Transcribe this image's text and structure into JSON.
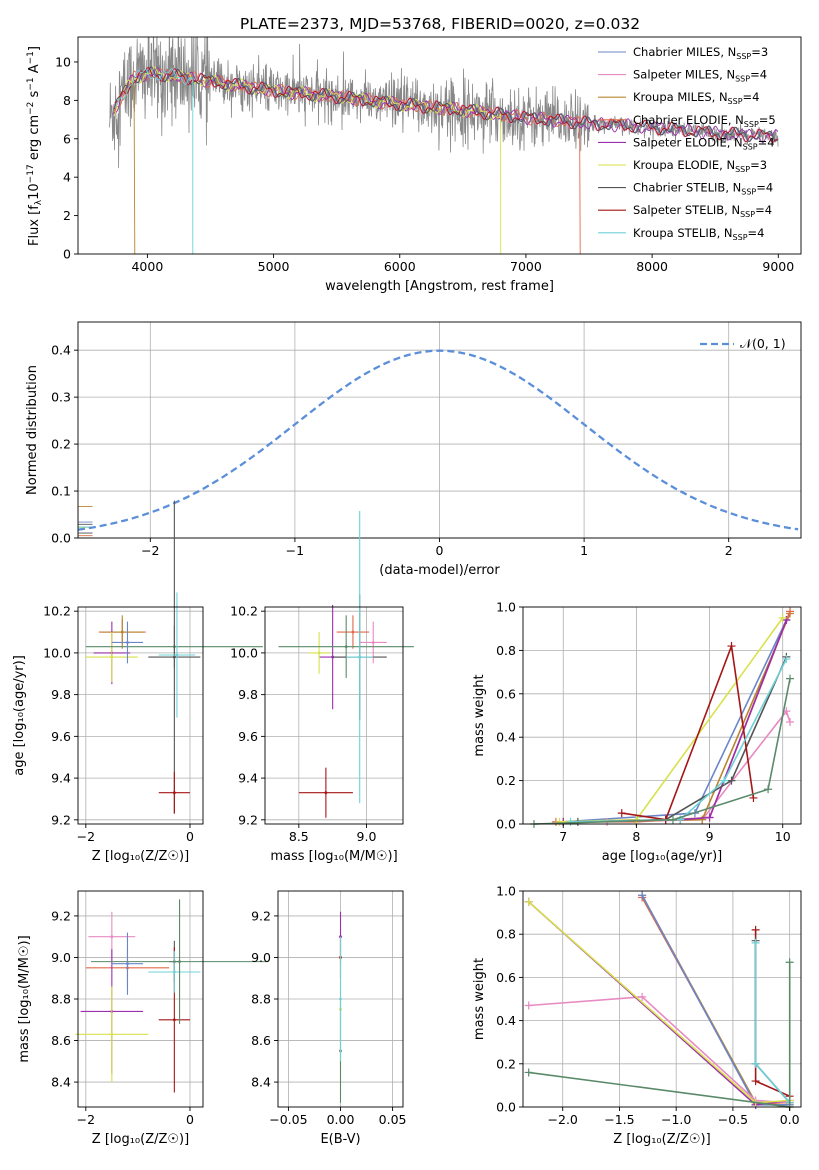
{
  "figure": {
    "title": "PLATE=2373, MJD=53768, FIBERID=0020, z=0.032"
  },
  "legend_entries": [
    {
      "label": "Chabrier MILES, N",
      "sub": "SSP",
      "suffix": "=3",
      "color": "#6b86c8"
    },
    {
      "label": "Salpeter MILES, N",
      "sub": "SSP",
      "suffix": "=4",
      "color": "#e88ac2"
    },
    {
      "label": "Kroupa MILES, N",
      "sub": "SSP",
      "suffix": "=4",
      "color": "#b8862e"
    },
    {
      "label": "Chabrier ELODIE, N",
      "sub": "SSP",
      "suffix": "=5",
      "color": "#e06a4a"
    },
    {
      "label": "Salpeter ELODIE, N",
      "sub": "SSP",
      "suffix": "=4",
      "color": "#9b2fae"
    },
    {
      "label": "Kroupa ELODIE, N",
      "sub": "SSP",
      "suffix": "=3",
      "color": "#d8e14a"
    },
    {
      "label": "Chabrier STELIB, N",
      "sub": "SSP",
      "suffix": "=4",
      "color": "#555555"
    },
    {
      "label": "Salpeter STELIB, N",
      "sub": "SSP",
      "suffix": "=4",
      "color": "#a41717"
    },
    {
      "label": "Kroupa STELIB, N",
      "sub": "SSP",
      "suffix": "=4",
      "color": "#6fd1d8"
    }
  ],
  "chart_data": [
    {
      "id": "spectrum",
      "type": "line",
      "xlabel": "wavelength [Angstrom, rest frame]",
      "ylabel_parts": [
        "Flux [f",
        "λ",
        "10",
        "−17",
        " erg cm",
        "−2",
        " s",
        "−1",
        " A",
        "−1",
        "]"
      ],
      "xlim": [
        3450,
        9180
      ],
      "ylim": [
        0,
        11.3
      ],
      "xticks": [
        4000,
        5000,
        6000,
        7000,
        8000,
        9000
      ],
      "yticks": [
        0,
        2,
        4,
        6,
        8,
        10
      ],
      "data_trend": [
        [
          3700,
          7.0
        ],
        [
          3800,
          8.3
        ],
        [
          3900,
          9.2
        ],
        [
          4000,
          9.4
        ],
        [
          4200,
          9.3
        ],
        [
          4500,
          9.0
        ],
        [
          5000,
          8.5
        ],
        [
          5500,
          8.2
        ],
        [
          6000,
          7.8
        ],
        [
          6500,
          7.5
        ],
        [
          7000,
          7.1
        ],
        [
          7500,
          6.8
        ],
        [
          8000,
          6.6
        ],
        [
          8500,
          6.3
        ],
        [
          9000,
          6.1
        ]
      ],
      "model_dropouts": [
        {
          "series": "Kroupa MILES, N",
          "x": 3900
        },
        {
          "series": "Kroupa STELIB, N",
          "x": 4360
        },
        {
          "series": "Kroupa ELODIE, N",
          "x": 6800
        },
        {
          "series": "Chabrier ELODIE, N",
          "x": 7430
        }
      ]
    },
    {
      "id": "residual-hist",
      "type": "bar",
      "xlabel": "(data-model)/error",
      "ylabel": "Normed distribution",
      "xlim": [
        -2.5,
        2.5
      ],
      "ylim": [
        0,
        0.46
      ],
      "xticks": [
        -2,
        -1,
        0,
        1,
        2
      ],
      "xtick_labels": [
        "−2",
        "−1",
        "0",
        "1",
        "2"
      ],
      "yticks": [
        0.0,
        0.1,
        0.2,
        0.3,
        0.4
      ],
      "ytick_labels": [
        "0.0",
        "0.1",
        "0.2",
        "0.3",
        "0.4"
      ],
      "bin_width": 0.1,
      "gaussian": {
        "mu": 0,
        "sigma": 1,
        "label": "𝒩(0, 1)"
      }
    },
    {
      "id": "age-vs-Z",
      "type": "scatter",
      "xlabel": "Z [log₁₀(Z/Z☉)]",
      "ylabel": "age  [log₁₀(age/yr)]",
      "xlim": [
        -2.15,
        0.25
      ],
      "ylim": [
        9.18,
        10.22
      ],
      "xticks": [
        -2,
        0
      ],
      "xtick_labels": [
        "−2",
        "0"
      ],
      "yticks": [
        9.2,
        9.4,
        9.6,
        9.8,
        10.0,
        10.2
      ],
      "ytick_labels": [
        "9.2",
        "9.4",
        "9.6",
        "9.8",
        "10.0",
        "10.2"
      ],
      "points": [
        {
          "x": -1.3,
          "y": 10.1,
          "xerr": 0.45,
          "yerr": 0.06,
          "color": "#e06a4a"
        },
        {
          "x": -1.3,
          "y": 10.1,
          "xerr": 0.4,
          "yerr": 0.08,
          "color": "#b8862e"
        },
        {
          "x": -1.5,
          "y": 10.0,
          "xerr": 0.35,
          "yerr": 0.15,
          "color": "#9b2fae"
        },
        {
          "x": -1.5,
          "y": 9.98,
          "xerr": 0.5,
          "yerr": 0.12,
          "color": "#d8e14a"
        },
        {
          "x": -0.3,
          "y": 10.03,
          "xerr": 1.7,
          "yerr": 0.1,
          "color": "#5a8a6a"
        },
        {
          "x": -0.3,
          "y": 9.98,
          "xerr": 0.5,
          "yerr": 0.75,
          "color": "#555555"
        },
        {
          "x": -0.3,
          "y": 9.33,
          "xerr": 0.3,
          "yerr": 0.1,
          "color": "#a41717"
        },
        {
          "x": -0.25,
          "y": 9.99,
          "xerr": 0.35,
          "yerr": 0.3,
          "color": "#6fd1d8"
        },
        {
          "x": -1.2,
          "y": 10.05,
          "xerr": 0.3,
          "yerr": 0.1,
          "color": "#6b86c8"
        }
      ]
    },
    {
      "id": "age-vs-mass",
      "type": "scatter",
      "xlabel": "mass [log₁₀(M/M☉)]",
      "xlim": [
        8.25,
        9.27
      ],
      "ylim": [
        9.18,
        10.22
      ],
      "xticks": [
        8.5,
        9.0
      ],
      "xtick_labels": [
        "8.5",
        "9.0"
      ],
      "yticks": [
        9.2,
        9.4,
        9.6,
        9.8,
        10.0,
        10.2
      ],
      "ytick_labels": [
        "9.2",
        "9.4",
        "9.6",
        "9.8",
        "10.0",
        "10.2"
      ],
      "points": [
        {
          "x": 8.9,
          "y": 10.1,
          "xerr": 0.12,
          "yerr": 0.08,
          "color": "#e06a4a"
        },
        {
          "x": 9.05,
          "y": 10.05,
          "xerr": 0.1,
          "yerr": 0.1,
          "color": "#e88ac2"
        },
        {
          "x": 8.75,
          "y": 9.98,
          "xerr": 0.1,
          "yerr": 0.25,
          "color": "#9b2fae"
        },
        {
          "x": 8.65,
          "y": 10.0,
          "xerr": 0.08,
          "yerr": 0.1,
          "color": "#d8e14a"
        },
        {
          "x": 8.85,
          "y": 10.03,
          "xerr": 0.5,
          "yerr": 0.15,
          "color": "#5a8a6a"
        },
        {
          "x": 8.95,
          "y": 9.98,
          "xerr": 0.2,
          "yerr": 0.3,
          "color": "#555555"
        },
        {
          "x": 8.7,
          "y": 9.33,
          "xerr": 0.2,
          "yerr": 0.12,
          "color": "#a41717"
        },
        {
          "x": 8.95,
          "y": 9.98,
          "xerr": 0.1,
          "yerr": 0.7,
          "color": "#6fd1d8"
        }
      ]
    },
    {
      "id": "weight-vs-age",
      "type": "line",
      "xlabel": "age  [log₁₀(age/yr)]",
      "ylabel": "mass weight",
      "xlim": [
        6.45,
        10.25
      ],
      "ylim": [
        0,
        1.0
      ],
      "xticks": [
        7,
        8,
        9,
        10
      ],
      "xtick_labels": [
        "7",
        "8",
        "9",
        "10"
      ],
      "yticks": [
        0.0,
        0.2,
        0.4,
        0.6,
        0.8,
        1.0
      ],
      "ytick_labels": [
        "0.0",
        "0.2",
        "0.4",
        "0.6",
        "0.8",
        "1.0"
      ],
      "series": [
        {
          "color": "#6b86c8",
          "x": [
            7.0,
            8.8,
            10.05
          ],
          "y": [
            0.01,
            0.05,
            0.94
          ]
        },
        {
          "color": "#e88ac2",
          "x": [
            7.6,
            8.9,
            10.05,
            10.1
          ],
          "y": [
            0.01,
            0.02,
            0.52,
            0.47
          ]
        },
        {
          "color": "#b8862e",
          "x": [
            7.0,
            8.9,
            10.1
          ],
          "y": [
            0.01,
            0.02,
            0.97
          ]
        },
        {
          "color": "#e06a4a",
          "x": [
            6.9,
            8.0,
            9.0,
            10.1
          ],
          "y": [
            0.01,
            0.01,
            0.03,
            0.98
          ]
        },
        {
          "color": "#9b2fae",
          "x": [
            7.0,
            8.6,
            9.0,
            10.05
          ],
          "y": [
            0.01,
            0.02,
            0.03,
            0.94
          ]
        },
        {
          "color": "#d8e14a",
          "x": [
            6.95,
            8.0,
            10.0
          ],
          "y": [
            0.01,
            0.02,
            0.95
          ]
        },
        {
          "color": "#555555",
          "x": [
            7.2,
            8.4,
            9.3,
            10.05
          ],
          "y": [
            0.01,
            0.02,
            0.2,
            0.77
          ]
        },
        {
          "color": "#a41717",
          "x": [
            7.8,
            8.4,
            9.3,
            9.6
          ],
          "y": [
            0.05,
            0.02,
            0.82,
            0.12
          ]
        },
        {
          "color": "#6fd1d8",
          "x": [
            7.1,
            8.6,
            9.2,
            10.05
          ],
          "y": [
            0.01,
            0.02,
            0.2,
            0.76
          ]
        },
        {
          "color": "#5a8a6a",
          "x": [
            6.6,
            8.5,
            9.8,
            10.1
          ],
          "y": [
            0.0,
            0.02,
            0.16,
            0.67
          ]
        }
      ]
    },
    {
      "id": "mass-vs-Z",
      "type": "scatter",
      "xlabel": "Z [log₁₀(Z/Z☉)]",
      "ylabel": "mass [log₁₀(M/M☉)]",
      "xlim": [
        -2.15,
        0.25
      ],
      "ylim": [
        8.28,
        9.32
      ],
      "xticks": [
        -2,
        0
      ],
      "xtick_labels": [
        "−2",
        "0"
      ],
      "yticks": [
        8.4,
        8.6,
        8.8,
        9.0,
        9.2
      ],
      "ytick_labels": [
        "8.4",
        "8.6",
        "8.8",
        "9.0",
        "9.2"
      ],
      "points": [
        {
          "x": -1.5,
          "y": 9.1,
          "xerr": 0.45,
          "yerr": 0.12,
          "color": "#e88ac2"
        },
        {
          "x": -1.2,
          "y": 8.95,
          "xerr": 0.8,
          "yerr": 0.1,
          "color": "#e06a4a"
        },
        {
          "x": -1.5,
          "y": 8.74,
          "xerr": 0.6,
          "yerr": 0.3,
          "color": "#9b2fae"
        },
        {
          "x": -1.5,
          "y": 8.63,
          "xerr": 0.7,
          "yerr": 0.23,
          "color": "#d8e14a"
        },
        {
          "x": -0.3,
          "y": 8.98,
          "xerr": 0.1,
          "yerr": 0.1,
          "color": "#555555"
        },
        {
          "x": -0.3,
          "y": 8.7,
          "xerr": 0.3,
          "yerr": 0.35,
          "color": "#a41717"
        },
        {
          "x": -0.3,
          "y": 8.93,
          "xerr": 0.5,
          "yerr": 0.1,
          "color": "#6fd1d8"
        },
        {
          "x": -0.2,
          "y": 8.98,
          "xerr": 1.7,
          "yerr": 0.3,
          "color": "#5a8a6a"
        },
        {
          "x": -1.2,
          "y": 8.97,
          "xerr": 0.3,
          "yerr": 0.15,
          "color": "#6b86c8"
        }
      ]
    },
    {
      "id": "mass-vs-ebv",
      "type": "scatter",
      "xlabel": "E(B-V)",
      "xlim": [
        -0.06,
        0.06
      ],
      "ylim": [
        8.28,
        9.32
      ],
      "xticks": [
        -0.05,
        0.0,
        0.05
      ],
      "xtick_labels": [
        "−0.05",
        "0.00",
        "0.05"
      ],
      "yticks": [
        8.4,
        8.6,
        8.8,
        9.0,
        9.2
      ],
      "ytick_labels": [
        "8.4",
        "8.6",
        "8.8",
        "9.0",
        "9.2"
      ],
      "points": [
        {
          "x": 0.0,
          "y": 9.1,
          "xerr": 0,
          "yerr": 0.12,
          "color": "#9b2fae"
        },
        {
          "x": 0.0,
          "y": 9.0,
          "xerr": 0,
          "yerr": 0.1,
          "color": "#a41717"
        },
        {
          "x": 0.0,
          "y": 8.75,
          "xerr": 0,
          "yerr": 0.3,
          "color": "#d8e14a"
        },
        {
          "x": 0.0,
          "y": 8.55,
          "xerr": 0,
          "yerr": 0.25,
          "color": "#5a8a6a"
        },
        {
          "x": 0.0,
          "y": 8.8,
          "xerr": 0,
          "yerr": 0.3,
          "color": "#6fd1d8"
        }
      ]
    },
    {
      "id": "weight-vs-Z",
      "type": "line",
      "xlabel": "Z [log₁₀(Z/Z☉)]",
      "ylabel": "mass weight",
      "xlim": [
        -2.35,
        0.1
      ],
      "ylim": [
        0,
        1.0
      ],
      "xticks": [
        -2.0,
        -1.5,
        -1.0,
        -0.5,
        0.0
      ],
      "xtick_labels": [
        "−2.0",
        "−1.5",
        "−1.0",
        "−0.5",
        "0.0"
      ],
      "yticks": [
        0.0,
        0.2,
        0.4,
        0.6,
        0.8,
        1.0
      ],
      "ytick_labels": [
        "0.0",
        "0.2",
        "0.4",
        "0.6",
        "0.8",
        "1.0"
      ],
      "series": [
        {
          "color": "#e06a4a",
          "x": [
            -1.3,
            -0.3,
            0.0
          ],
          "y": [
            0.97,
            0.02,
            0.01
          ]
        },
        {
          "color": "#b8862e",
          "x": [
            -1.3,
            -0.3,
            0.0
          ],
          "y": [
            0.98,
            0.02,
            0.0
          ]
        },
        {
          "color": "#6b86c8",
          "x": [
            -1.3,
            -0.3,
            0.0
          ],
          "y": [
            0.98,
            0.01,
            0.01
          ]
        },
        {
          "color": "#e88ac2",
          "x": [
            -2.3,
            -1.3,
            -0.3,
            0.0
          ],
          "y": [
            0.47,
            0.51,
            0.03,
            0.02
          ]
        },
        {
          "color": "#9b2fae",
          "x": [
            -2.3,
            -0.3,
            0.0
          ],
          "y": [
            0.95,
            0.01,
            0.03
          ]
        },
        {
          "color": "#d8e14a",
          "x": [
            -2.3,
            -0.3,
            0.0
          ],
          "y": [
            0.95,
            0.02,
            0.03
          ]
        },
        {
          "color": "#a41717",
          "x": [
            -0.3,
            -0.3,
            0.0
          ],
          "y": [
            0.82,
            0.12,
            0.05
          ]
        },
        {
          "color": "#555555",
          "x": [
            -0.3,
            -0.3,
            0.0
          ],
          "y": [
            0.77,
            0.2,
            0.02
          ]
        },
        {
          "color": "#6fd1d8",
          "x": [
            -0.3,
            -0.3,
            0.0
          ],
          "y": [
            0.76,
            0.2,
            0.02
          ]
        },
        {
          "color": "#5a8a6a",
          "x": [
            -2.3,
            0.0,
            0.0
          ],
          "y": [
            0.16,
            0.0,
            0.67
          ]
        }
      ]
    }
  ]
}
